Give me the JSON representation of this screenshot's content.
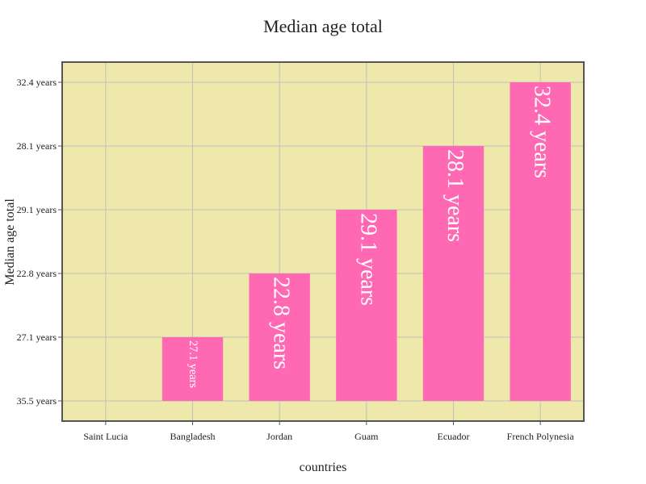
{
  "chart_data": {
    "type": "bar",
    "title": "Median age total",
    "xlabel": "countries",
    "ylabel": "Median age total",
    "categories": [
      "Saint Lucia",
      "Bangladesh",
      "Jordan",
      "Guam",
      "Ecuador",
      "French Polynesia"
    ],
    "values": [
      35.5,
      27.1,
      22.8,
      29.1,
      28.1,
      32.4
    ],
    "bar_labels": [
      "",
      "27.1 years",
      "22.8 years",
      "29.1 years",
      "28.1 years",
      "32.4 years"
    ],
    "y_ticks": [
      "35.5 years",
      "27.1 years",
      "22.8 years",
      "29.1 years",
      "28.1 years",
      "32.4 years"
    ],
    "grid": true,
    "colors": {
      "bar": "#ff69b4",
      "plot_bg": "#eee8aa",
      "grid": "#c0c0c0",
      "frame": "#555555",
      "bar_label": "#ffffff"
    }
  }
}
